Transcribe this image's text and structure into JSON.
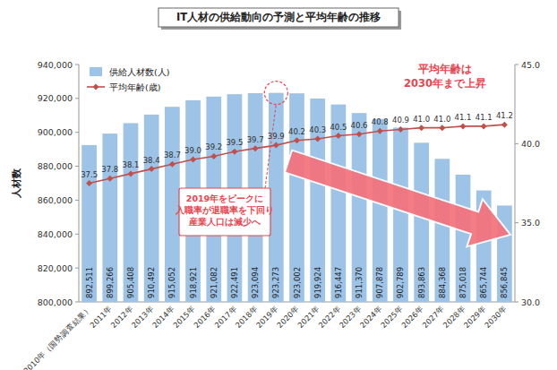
{
  "chart_data": {
    "type": "bar",
    "title": "IT人材の供給動向の予測と平均年齢の推移",
    "y_label": "人材数",
    "categories": [
      "2010年（国勢調査結果）",
      "2011年",
      "2012年",
      "2013年",
      "2014年",
      "2015年",
      "2016年",
      "2017年",
      "2018年",
      "2019年",
      "2020年",
      "2021年",
      "2022年",
      "2023年",
      "2024年",
      "2025年",
      "2026年",
      "2027年",
      "2028年",
      "2029年",
      "2030年"
    ],
    "series": [
      {
        "name": "供給人材数(人)",
        "type": "bar",
        "color": "#9dc3e6",
        "values": [
          892511,
          899266,
          905408,
          910492,
          915052,
          918921,
          921082,
          922491,
          923094,
          923273,
          923002,
          919924,
          916447,
          911370,
          907878,
          902789,
          893863,
          884368,
          875018,
          865744,
          856845
        ],
        "value_labels": [
          "892,511",
          "899,266",
          "905,408",
          "910,492",
          "915,052",
          "918,921",
          "921,082",
          "922,491",
          "923,094",
          "923,273",
          "923,002",
          "919,924",
          "916,447",
          "911,370",
          "907,878",
          "902,789",
          "893,863",
          "884,368",
          "875,018",
          "865,744",
          "856,845"
        ]
      },
      {
        "name": "平均年齢(歳)",
        "type": "line",
        "axis": "y2",
        "color": "#c0504d",
        "marker": "diamond",
        "values": [
          37.5,
          37.8,
          38.1,
          38.4,
          38.7,
          39.0,
          39.2,
          39.5,
          39.7,
          39.9,
          40.2,
          40.3,
          40.5,
          40.6,
          40.8,
          40.9,
          41.0,
          41.0,
          41.1,
          41.1,
          41.2
        ],
        "value_labels": [
          "37.5",
          "37.8",
          "38.1",
          "38.4",
          "38.7",
          "39.0",
          "39.2",
          "39.5",
          "39.7",
          "39.9",
          "40.2",
          "40.3",
          "40.5",
          "40.6",
          "40.8",
          "40.9",
          "41.0",
          "41.0",
          "41.1",
          "41.1",
          "41.2"
        ]
      }
    ],
    "ylim": [
      800000,
      940000
    ],
    "yticks": [
      {
        "value": 800000,
        "label": "800,000"
      },
      {
        "value": 820000,
        "label": "820,000"
      },
      {
        "value": 840000,
        "label": "840,000"
      },
      {
        "value": 860000,
        "label": "860,000"
      },
      {
        "value": 880000,
        "label": "880,000"
      },
      {
        "value": 900000,
        "label": "900,000"
      },
      {
        "value": 920000,
        "label": "920,000"
      },
      {
        "value": 940000,
        "label": "940,000"
      }
    ],
    "y2lim": [
      30,
      45
    ],
    "y2ticks": [
      {
        "value": 30,
        "label": "30.0"
      },
      {
        "value": 35,
        "label": "35.0"
      },
      {
        "value": 40,
        "label": "40.0"
      },
      {
        "value": 45,
        "label": "45.0"
      }
    ],
    "annotations": [
      [
        "平均年齢は",
        "2030年まで上昇"
      ],
      [
        "2019年をピークに",
        "入職率が退職率を下回り",
        "産業人口は減少へ"
      ]
    ],
    "legend": "upper left",
    "grid": false,
    "data_labels": true
  }
}
